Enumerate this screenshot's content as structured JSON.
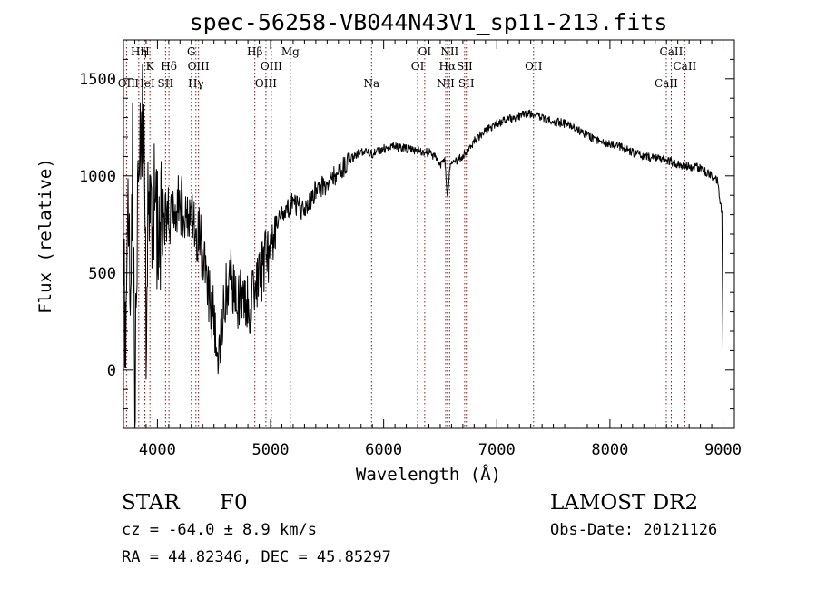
{
  "chart_data": {
    "type": "line",
    "title": "spec-56258-VB044N43V1_sp11-213.fits",
    "xlabel": "Wavelength (Å)",
    "ylabel": "Flux (relative)",
    "xlim": [
      3700,
      9100
    ],
    "ylim": [
      -300,
      1700
    ],
    "x_ticks": [
      4000,
      5000,
      6000,
      7000,
      8000,
      9000
    ],
    "y_ticks": [
      0,
      500,
      1000,
      1500
    ],
    "series": [
      {
        "anchors": [
          [
            3700,
            600
          ],
          [
            3720,
            100
          ],
          [
            3740,
            900
          ],
          [
            3760,
            400
          ],
          [
            3780,
            1100
          ],
          [
            3800,
            -200
          ],
          [
            3820,
            700
          ],
          [
            3840,
            1200
          ],
          [
            3860,
            1300
          ],
          [
            3880,
            1150
          ],
          [
            3900,
            300
          ],
          [
            3920,
            900
          ],
          [
            3940,
            750
          ],
          [
            3960,
            950
          ],
          [
            3980,
            850
          ],
          [
            4000,
            700
          ],
          [
            4050,
            800
          ],
          [
            4100,
            780
          ],
          [
            4150,
            870
          ],
          [
            4200,
            850
          ],
          [
            4250,
            830
          ],
          [
            4300,
            760
          ],
          [
            4340,
            700
          ],
          [
            4380,
            680
          ],
          [
            4400,
            560
          ],
          [
            4450,
            400
          ],
          [
            4500,
            260
          ],
          [
            4540,
            120
          ],
          [
            4600,
            370
          ],
          [
            4650,
            500
          ],
          [
            4700,
            300
          ],
          [
            4750,
            420
          ],
          [
            4800,
            330
          ],
          [
            4850,
            380
          ],
          [
            4900,
            450
          ],
          [
            4950,
            580
          ],
          [
            5000,
            560
          ],
          [
            5050,
            780
          ],
          [
            5100,
            800
          ],
          [
            5150,
            830
          ],
          [
            5200,
            860
          ],
          [
            5300,
            820
          ],
          [
            5400,
            930
          ],
          [
            5500,
            960
          ],
          [
            5600,
            1020
          ],
          [
            5700,
            1080
          ],
          [
            5800,
            1130
          ],
          [
            5900,
            1110
          ],
          [
            6000,
            1140
          ],
          [
            6100,
            1150
          ],
          [
            6200,
            1140
          ],
          [
            6300,
            1130
          ],
          [
            6400,
            1120
          ],
          [
            6450,
            1100
          ],
          [
            6500,
            1060
          ],
          [
            6540,
            1080
          ],
          [
            6563,
            900
          ],
          [
            6590,
            1060
          ],
          [
            6650,
            1080
          ],
          [
            6700,
            1100
          ],
          [
            6800,
            1180
          ],
          [
            6900,
            1230
          ],
          [
            7000,
            1270
          ],
          [
            7100,
            1290
          ],
          [
            7200,
            1310
          ],
          [
            7300,
            1320
          ],
          [
            7400,
            1300
          ],
          [
            7500,
            1280
          ],
          [
            7600,
            1270
          ],
          [
            7700,
            1240
          ],
          [
            7800,
            1210
          ],
          [
            7900,
            1180
          ],
          [
            8000,
            1160
          ],
          [
            8100,
            1150
          ],
          [
            8200,
            1120
          ],
          [
            8300,
            1100
          ],
          [
            8400,
            1090
          ],
          [
            8500,
            1080
          ],
          [
            8600,
            1060
          ],
          [
            8700,
            1050
          ],
          [
            8800,
            1040
          ],
          [
            8900,
            1000
          ],
          [
            8950,
            980
          ],
          [
            8990,
            800
          ],
          [
            9000,
            100
          ]
        ]
      }
    ],
    "lines": [
      {
        "label": "OII",
        "wl": 3727,
        "row": 3
      },
      {
        "label": "Hη",
        "wl": 3835,
        "row": 1
      },
      {
        "label": "H",
        "wl": 3889,
        "row": 1
      },
      {
        "label": "HeI",
        "wl": 3889,
        "row": 3
      },
      {
        "label": "K",
        "wl": 3934,
        "row": 2
      },
      {
        "label": "SII",
        "wl": 4072,
        "row": 3
      },
      {
        "label": "Hδ",
        "wl": 4102,
        "row": 2
      },
      {
        "label": "G",
        "wl": 4300,
        "row": 1
      },
      {
        "label": "Hγ",
        "wl": 4340,
        "row": 3
      },
      {
        "label": "OIII",
        "wl": 4363,
        "row": 2
      },
      {
        "label": "Hβ",
        "wl": 4861,
        "row": 1
      },
      {
        "label": "OIII",
        "wl": 4959,
        "row": 3
      },
      {
        "label": "OIII",
        "wl": 5007,
        "row": 2
      },
      {
        "label": "Mg",
        "wl": 5175,
        "row": 1
      },
      {
        "label": "Na",
        "wl": 5893,
        "row": 3
      },
      {
        "label": "OI",
        "wl": 6300,
        "row": 2
      },
      {
        "label": "OI",
        "wl": 6363,
        "row": 1
      },
      {
        "label": "NII",
        "wl": 6548,
        "row": 3
      },
      {
        "label": "Hα",
        "wl": 6563,
        "row": 2
      },
      {
        "label": "NII",
        "wl": 6583,
        "row": 1
      },
      {
        "label": "SII",
        "wl": 6716,
        "row": 2
      },
      {
        "label": "SII",
        "wl": 6731,
        "row": 3
      },
      {
        "label": "OII",
        "wl": 7325,
        "row": 2
      },
      {
        "label": "CaII",
        "wl": 8498,
        "row": 3
      },
      {
        "label": "CaII",
        "wl": 8542,
        "row": 1
      },
      {
        "label": "CaII",
        "wl": 8662,
        "row": 2
      }
    ]
  },
  "info": {
    "class": "STAR",
    "subclass": "F0",
    "survey": "LAMOST DR2",
    "cz": "cz = -64.0 ± 8.9 km/s",
    "obsdate": "Obs-Date: 20121126",
    "radec": "RA =  44.82346, DEC =  45.85297"
  },
  "colors": {
    "spectrum": "#000000",
    "marker_line": "#8b1a1a",
    "axes": "#000000",
    "background": "#ffffff"
  }
}
